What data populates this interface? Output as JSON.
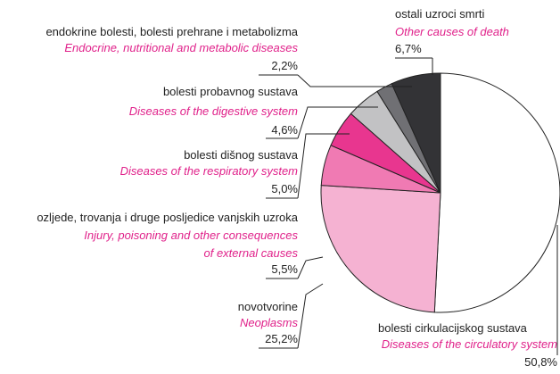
{
  "chart_data": {
    "type": "pie",
    "categories": [
      "bolesti cirkulacijskog sustava",
      "novotvorine",
      "ozljede, trovanja i druge posljedice vanjskih uzroka",
      "bolesti dišnog sustava",
      "bolesti probavnog sustava",
      "endokrine bolesti, bolesti prehrane i metabolizma",
      "ostali uzroci smrti"
    ],
    "categories_en": [
      "Diseases of the circulatory system",
      "Neoplasms",
      [
        "Injury, poisoning and other consequences",
        "of external causes"
      ],
      "Diseases of the respiratory system",
      "Diseases of the digestive system",
      "Endocrine, nutritional and metabolic diseases",
      "Other causes of death"
    ],
    "values": [
      50.8,
      25.2,
      5.5,
      5.0,
      4.6,
      2.2,
      6.7
    ],
    "value_labels": [
      "50,8%",
      "25,2%",
      "5,5%",
      "5,0%",
      "4,6%",
      "2,2%",
      "6,7%"
    ],
    "colors": [
      "#ffffff",
      "#f5b2d2",
      "#f07ab3",
      "#e8368f",
      "#c2c2c4",
      "#707074",
      "#333336"
    ]
  }
}
